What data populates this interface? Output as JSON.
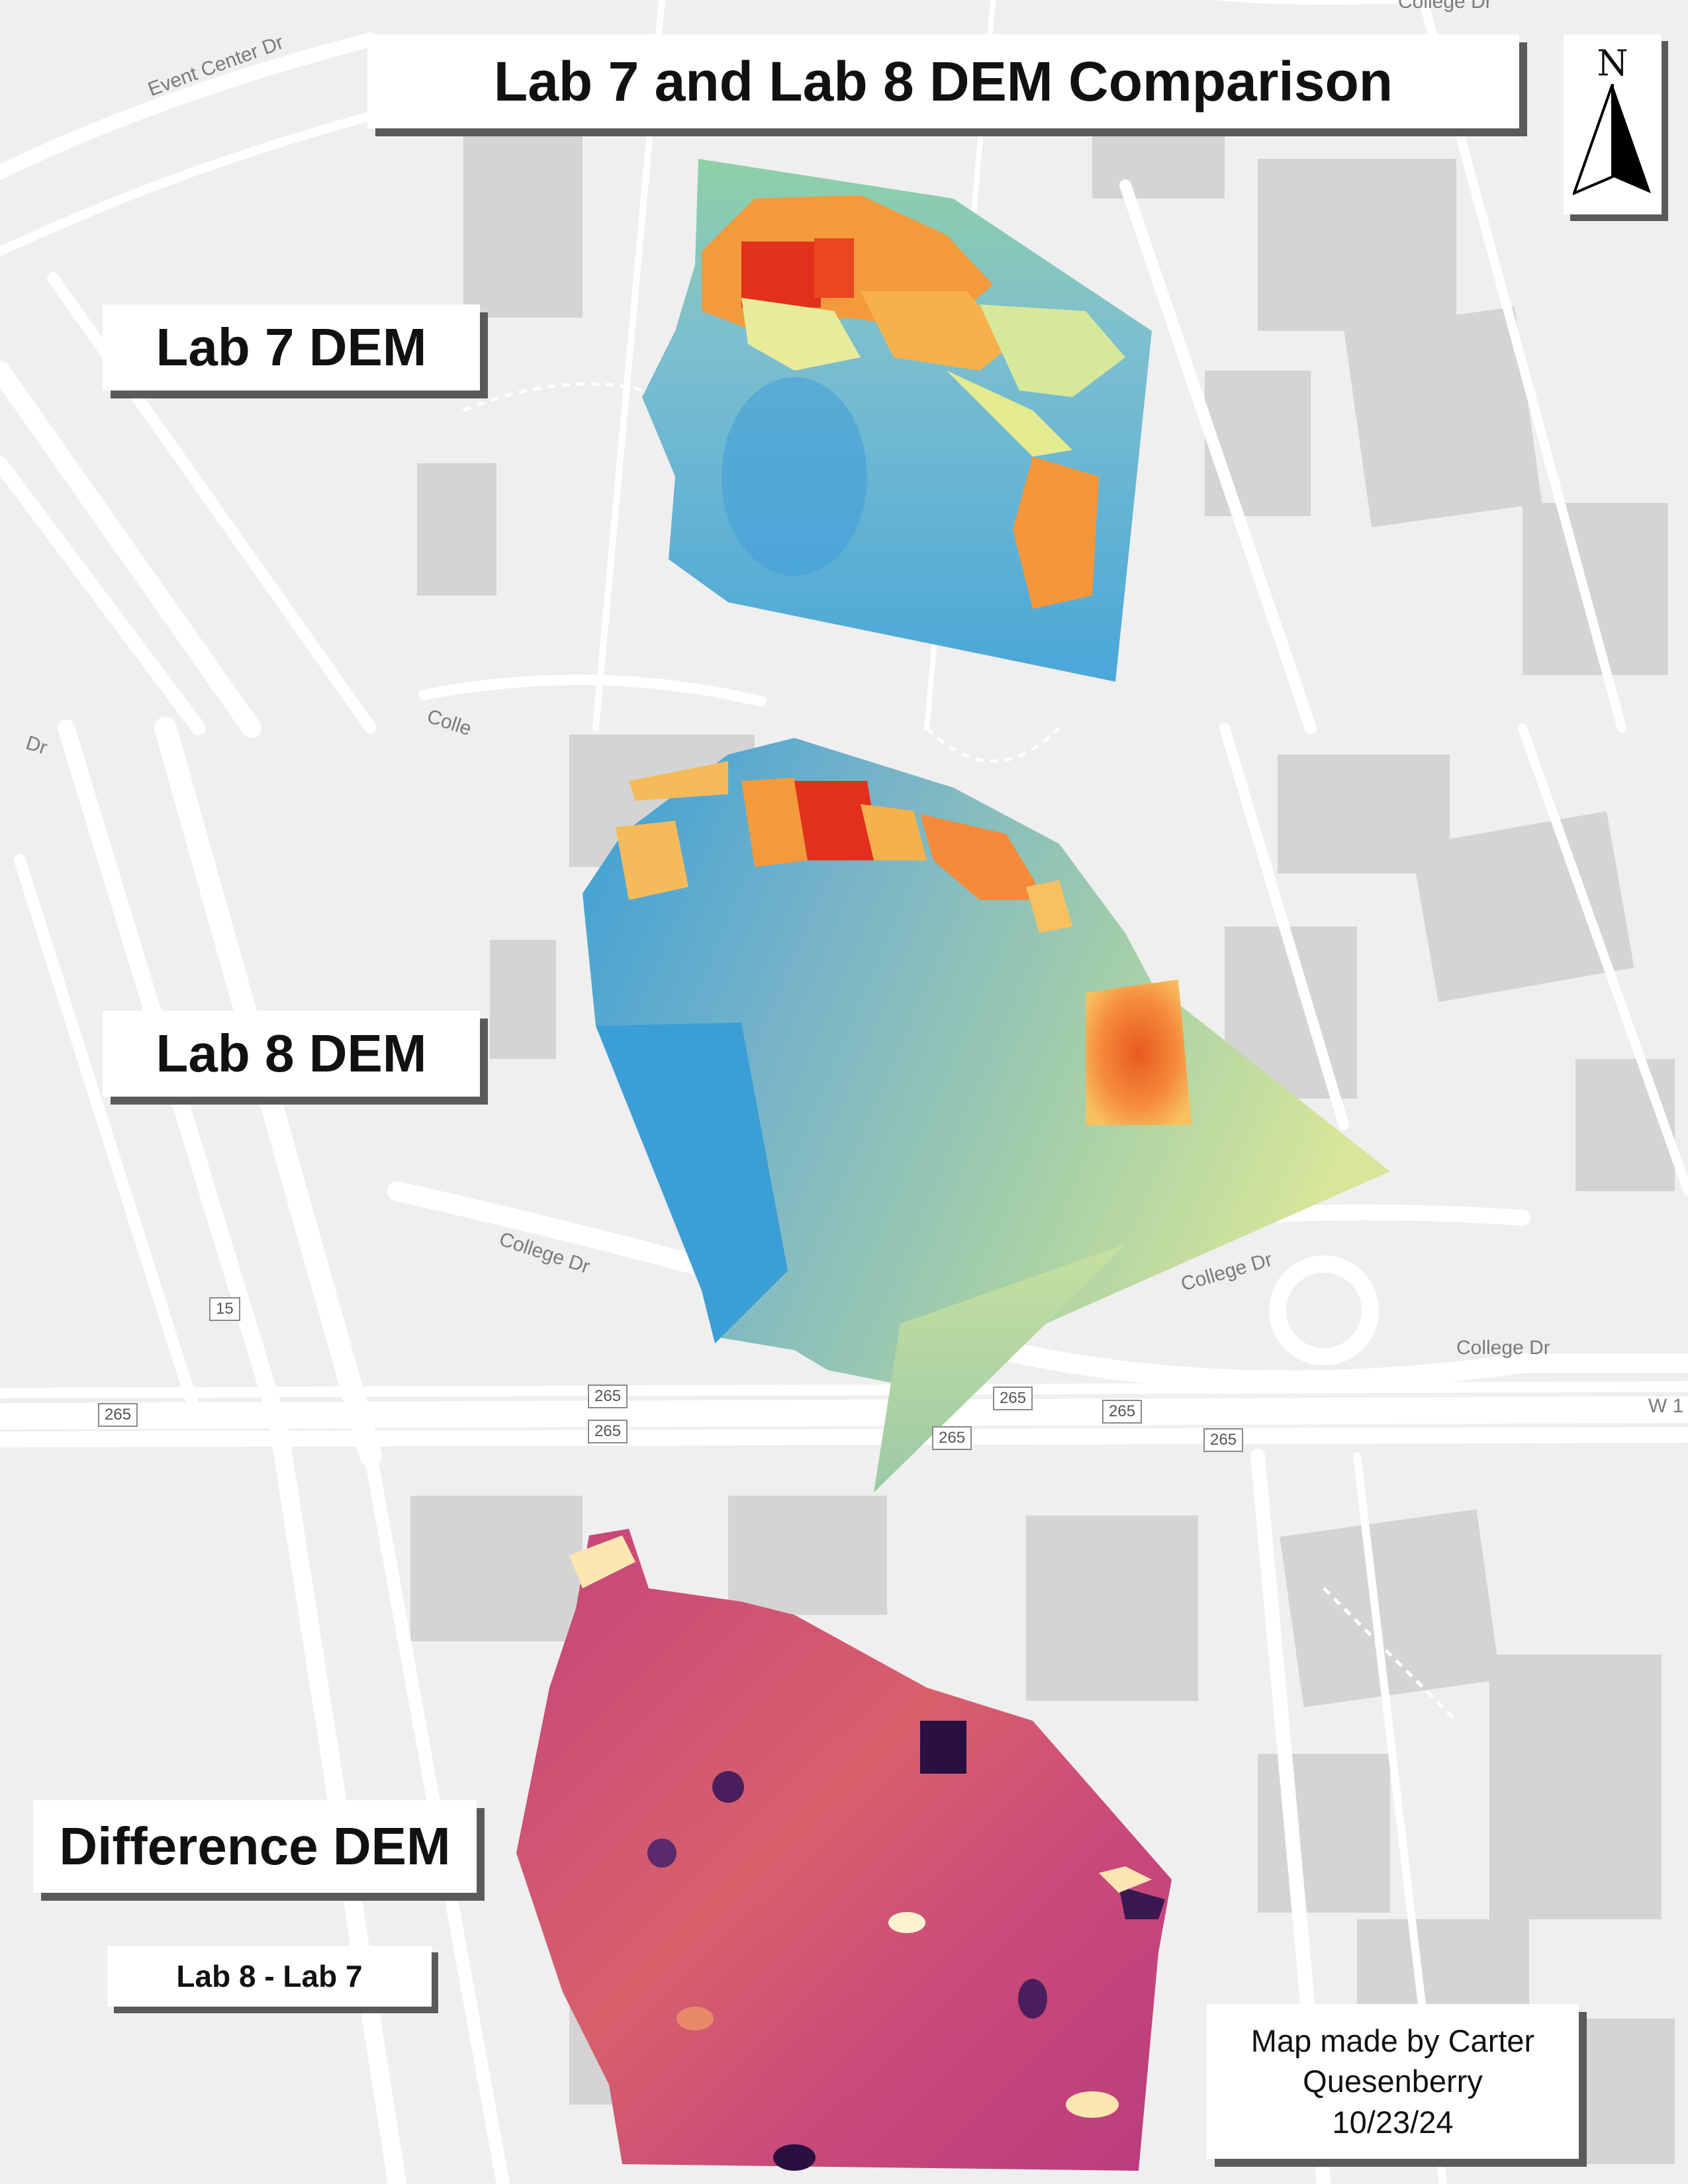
{
  "title": "Lab 7 and Lab 8 DEM Comparison",
  "panels": {
    "lab7": "Lab 7 DEM",
    "lab8": "Lab 8 DEM",
    "difference": "Difference DEM",
    "difference_formula": "Lab 8 - Lab 7"
  },
  "north_arrow": {
    "letter": "N"
  },
  "credit": {
    "line1": "Map made by Carter",
    "line2": "Quesenberry",
    "line3": "10/23/24"
  },
  "road_labels": {
    "event_center": "Event Center Dr",
    "college_top": "College Dr",
    "college_partial": "Colle",
    "dr_partial": "Dr",
    "college_mid": "College Dr",
    "college_right": "College Dr",
    "college_far": "College Dr",
    "w_partial": "W 1"
  },
  "shields": {
    "r15": "15",
    "r265": "265"
  },
  "colors": {
    "basemap_bg": "#efefef",
    "road": "#ffffff",
    "building": "#d3d3d3",
    "panel_shadow": "#5a5a5a",
    "dem_low": "#3a9fd4",
    "dem_mid": "#e8ec9a",
    "dem_high": "#e2301c",
    "diff_base": "#c2437a",
    "diff_low": "#2a1040",
    "diff_high": "#fde6b0"
  }
}
